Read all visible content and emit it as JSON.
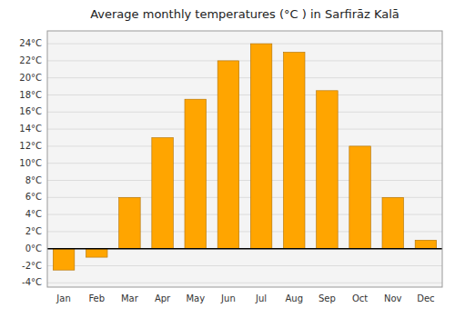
{
  "chart_data": {
    "type": "bar",
    "title": "Average monthly temperatures (°C ) in Sarfirāz Kalā",
    "categories": [
      "Jan",
      "Feb",
      "Mar",
      "Apr",
      "May",
      "Jun",
      "Jul",
      "Aug",
      "Sep",
      "Oct",
      "Nov",
      "Dec"
    ],
    "values": [
      -2.5,
      -1.0,
      6.0,
      13.0,
      17.5,
      22.0,
      24.0,
      23.0,
      18.5,
      12.0,
      6.0,
      1.0
    ],
    "color": "#FFA500",
    "ylim": [
      -4.5,
      25.5
    ],
    "yticks": [
      {
        "value": -4,
        "label": "-4°C"
      },
      {
        "value": -2,
        "label": "-2°C"
      },
      {
        "value": 0,
        "label": "0°C"
      },
      {
        "value": 2,
        "label": "2°C"
      },
      {
        "value": 4,
        "label": "4°C"
      },
      {
        "value": 6,
        "label": "6°C"
      },
      {
        "value": 8,
        "label": "8°C"
      },
      {
        "value": 10,
        "label": "10°C"
      },
      {
        "value": 12,
        "label": "12°C"
      },
      {
        "value": 14,
        "label": "14°C"
      },
      {
        "value": 16,
        "label": "16°C"
      },
      {
        "value": 18,
        "label": "18°C"
      },
      {
        "value": 20,
        "label": "20°C"
      },
      {
        "value": 22,
        "label": "22°C"
      },
      {
        "value": 24,
        "label": "24°C"
      }
    ],
    "grid": true
  }
}
